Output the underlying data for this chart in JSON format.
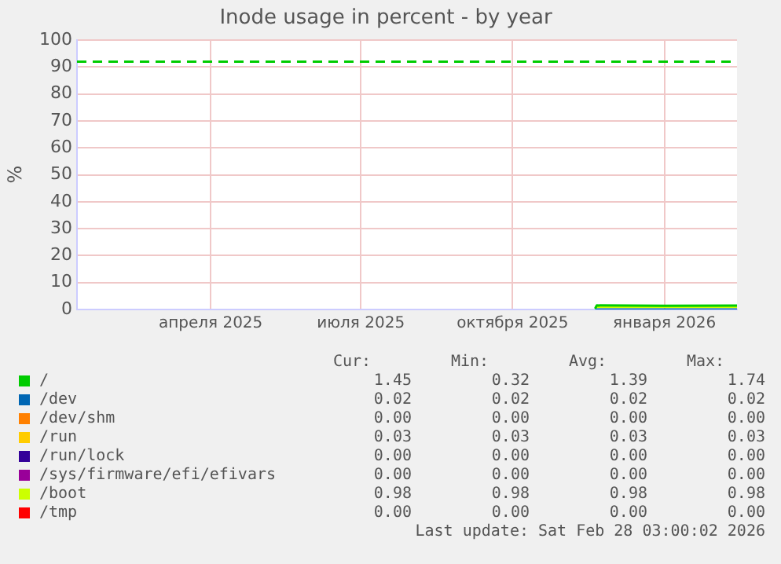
{
  "chart_data": {
    "type": "line",
    "title": "Inode usage in percent - by year",
    "ylabel": "%",
    "xlim": [
      "2025-01-24",
      "2026-02-28"
    ],
    "xticks": [
      {
        "value": "2025-04-15",
        "label": "апреля 2025"
      },
      {
        "value": "2025-07-15",
        "label": "июля 2025"
      },
      {
        "value": "2025-10-15",
        "label": "октября 2025"
      },
      {
        "value": "2026-01-15",
        "label": "января 2026"
      }
    ],
    "ylim": [
      0,
      100
    ],
    "yticks": [
      0,
      10,
      20,
      30,
      40,
      50,
      60,
      70,
      80,
      90,
      100
    ],
    "grid": true,
    "legend": "bottom",
    "marker": "none",
    "ref_lines": [
      {
        "axis": "y",
        "value": 92,
        "color": "#00cc00",
        "line_style": "dashed"
      }
    ],
    "series": [
      {
        "name": "/",
        "color": "#00cc00",
        "x": [
          "2025-12-04",
          "2025-12-05",
          "2026-01-15",
          "2026-02-28"
        ],
        "values": [
          0.32,
          1.5,
          1.4,
          1.45
        ]
      },
      {
        "name": "/dev",
        "color": "#0066b3",
        "x": [
          "2025-12-04",
          "2026-02-28"
        ],
        "values": [
          0.02,
          0.02
        ]
      },
      {
        "name": "/dev/shm",
        "color": "#ff8000"
      },
      {
        "name": "/run",
        "color": "#ffcc00"
      },
      {
        "name": "/run/lock",
        "color": "#330099"
      },
      {
        "name": "/sys/firmware/efi/efivars",
        "color": "#990099"
      },
      {
        "name": "/boot",
        "color": "#ccff00",
        "x": [
          "2025-12-04",
          "2026-02-28"
        ],
        "values": [
          0.98,
          0.98
        ]
      },
      {
        "name": "/tmp",
        "color": "#ff0000"
      }
    ],
    "annotations": [
      "Cur:",
      "Min:",
      "Avg:",
      "Max:",
      "1.45",
      "0.32",
      "1.39",
      "1.74",
      "0.02",
      "0.02",
      "0.02",
      "0.02",
      "0.00",
      "0.00",
      "0.00",
      "0.00",
      "0.03",
      "0.03",
      "0.03",
      "0.03",
      "0.00",
      "0.00",
      "0.00",
      "0.00",
      "0.00",
      "0.00",
      "0.00",
      "0.00",
      "0.98",
      "0.98",
      "0.98",
      "0.98",
      "0.00",
      "0.00",
      "0.00",
      "0.00",
      "Last update: Sat Feb 28 03:00:02 2026"
    ]
  }
}
